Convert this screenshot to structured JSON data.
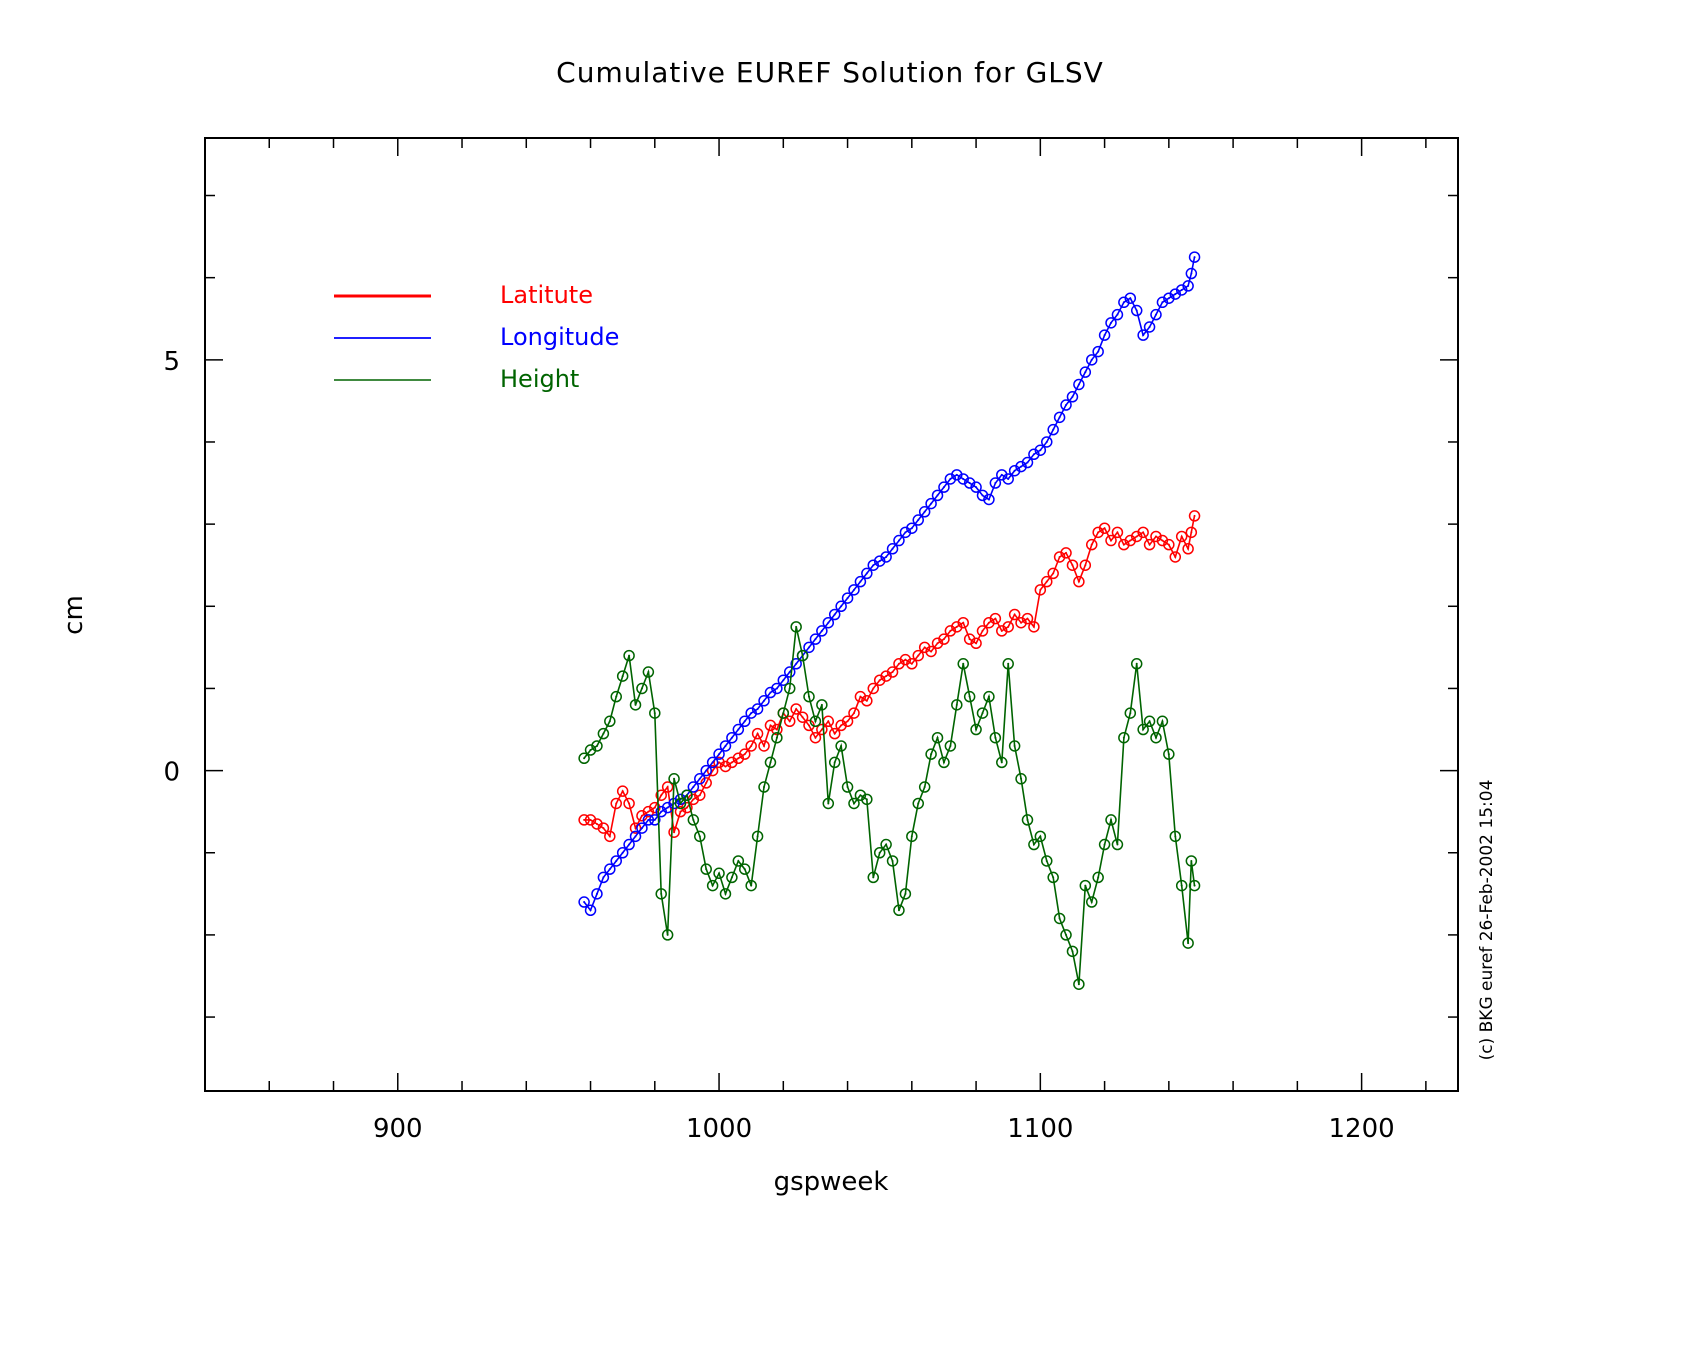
{
  "chart_data": {
    "type": "line",
    "title": "Cumulative EUREF Solution for GLSV",
    "xlabel": "gspweek",
    "ylabel": "cm",
    "xlim": [
      840,
      1230
    ],
    "ylim": [
      -3.9,
      7.7
    ],
    "xticks": [
      900,
      1000,
      1100,
      1200
    ],
    "yticks": [
      0,
      5
    ],
    "grid": false,
    "legend_position": "top-left",
    "copyright": "(c) BKG euref 26-Feb-2002 15:04",
    "series": [
      {
        "name": "Latitute",
        "color": "#ff0000",
        "x": [
          958,
          960,
          962,
          964,
          966,
          968,
          970,
          972,
          974,
          976,
          978,
          980,
          982,
          984,
          986,
          988,
          990,
          992,
          994,
          996,
          998,
          1000,
          1002,
          1004,
          1006,
          1008,
          1010,
          1012,
          1014,
          1016,
          1018,
          1020,
          1022,
          1024,
          1026,
          1028,
          1030,
          1032,
          1034,
          1036,
          1038,
          1040,
          1042,
          1044,
          1046,
          1048,
          1050,
          1052,
          1054,
          1056,
          1058,
          1060,
          1062,
          1064,
          1066,
          1068,
          1070,
          1072,
          1074,
          1076,
          1078,
          1080,
          1082,
          1084,
          1086,
          1088,
          1090,
          1092,
          1094,
          1096,
          1098,
          1100,
          1102,
          1104,
          1106,
          1108,
          1110,
          1112,
          1114,
          1116,
          1118,
          1120,
          1122,
          1124,
          1126,
          1128,
          1130,
          1132,
          1134,
          1136,
          1138,
          1140,
          1142,
          1144,
          1146,
          1147,
          1148
        ],
        "values": [
          -0.6,
          -0.6,
          -0.65,
          -0.7,
          -0.8,
          -0.4,
          -0.25,
          -0.4,
          -0.7,
          -0.55,
          -0.5,
          -0.45,
          -0.3,
          -0.2,
          -0.75,
          -0.5,
          -0.45,
          -0.35,
          -0.3,
          -0.15,
          0.0,
          0.1,
          0.05,
          0.1,
          0.15,
          0.2,
          0.3,
          0.45,
          0.3,
          0.55,
          0.5,
          0.7,
          0.6,
          0.75,
          0.65,
          0.55,
          0.4,
          0.5,
          0.6,
          0.45,
          0.55,
          0.6,
          0.7,
          0.9,
          0.85,
          1.0,
          1.1,
          1.15,
          1.2,
          1.3,
          1.35,
          1.3,
          1.4,
          1.5,
          1.45,
          1.55,
          1.6,
          1.7,
          1.75,
          1.8,
          1.6,
          1.55,
          1.7,
          1.8,
          1.85,
          1.7,
          1.75,
          1.9,
          1.8,
          1.85,
          1.75,
          2.2,
          2.3,
          2.4,
          2.6,
          2.65,
          2.5,
          2.3,
          2.5,
          2.75,
          2.9,
          2.95,
          2.8,
          2.9,
          2.75,
          2.8,
          2.85,
          2.9,
          2.75,
          2.85,
          2.8,
          2.75,
          2.6,
          2.85,
          2.7,
          2.9,
          3.1
        ]
      },
      {
        "name": "Longitude",
        "color": "#0000ff",
        "x": [
          958,
          960,
          962,
          964,
          966,
          968,
          970,
          972,
          974,
          976,
          978,
          980,
          982,
          984,
          986,
          988,
          990,
          992,
          994,
          996,
          998,
          1000,
          1002,
          1004,
          1006,
          1008,
          1010,
          1012,
          1014,
          1016,
          1018,
          1020,
          1022,
          1024,
          1026,
          1028,
          1030,
          1032,
          1034,
          1036,
          1038,
          1040,
          1042,
          1044,
          1046,
          1048,
          1050,
          1052,
          1054,
          1056,
          1058,
          1060,
          1062,
          1064,
          1066,
          1068,
          1070,
          1072,
          1074,
          1076,
          1078,
          1080,
          1082,
          1084,
          1086,
          1088,
          1090,
          1092,
          1094,
          1096,
          1098,
          1100,
          1102,
          1104,
          1106,
          1108,
          1110,
          1112,
          1114,
          1116,
          1118,
          1120,
          1122,
          1124,
          1126,
          1128,
          1130,
          1132,
          1134,
          1136,
          1138,
          1140,
          1142,
          1144,
          1146,
          1147,
          1148
        ],
        "values": [
          -1.6,
          -1.7,
          -1.5,
          -1.3,
          -1.2,
          -1.1,
          -1.0,
          -0.9,
          -0.8,
          -0.7,
          -0.6,
          -0.6,
          -0.5,
          -0.45,
          -0.4,
          -0.35,
          -0.3,
          -0.2,
          -0.1,
          0.0,
          0.1,
          0.2,
          0.3,
          0.4,
          0.5,
          0.6,
          0.7,
          0.75,
          0.85,
          0.95,
          1.0,
          1.1,
          1.2,
          1.3,
          1.4,
          1.5,
          1.6,
          1.7,
          1.8,
          1.9,
          2.0,
          2.1,
          2.2,
          2.3,
          2.4,
          2.5,
          2.55,
          2.6,
          2.7,
          2.8,
          2.9,
          2.95,
          3.05,
          3.15,
          3.25,
          3.35,
          3.45,
          3.55,
          3.6,
          3.55,
          3.5,
          3.45,
          3.35,
          3.3,
          3.5,
          3.6,
          3.55,
          3.65,
          3.7,
          3.75,
          3.85,
          3.9,
          4.0,
          4.15,
          4.3,
          4.45,
          4.55,
          4.7,
          4.85,
          5.0,
          5.1,
          5.3,
          5.45,
          5.55,
          5.7,
          5.75,
          5.6,
          5.3,
          5.4,
          5.55,
          5.7,
          5.75,
          5.8,
          5.85,
          5.9,
          6.05,
          6.25
        ]
      },
      {
        "name": "Height",
        "color": "#006400",
        "x": [
          958,
          960,
          962,
          964,
          966,
          968,
          970,
          972,
          974,
          976,
          978,
          980,
          982,
          984,
          986,
          988,
          990,
          992,
          994,
          996,
          998,
          1000,
          1002,
          1004,
          1006,
          1008,
          1010,
          1012,
          1014,
          1016,
          1018,
          1020,
          1022,
          1024,
          1026,
          1028,
          1030,
          1032,
          1034,
          1036,
          1038,
          1040,
          1042,
          1044,
          1046,
          1048,
          1050,
          1052,
          1054,
          1056,
          1058,
          1060,
          1062,
          1064,
          1066,
          1068,
          1070,
          1072,
          1074,
          1076,
          1078,
          1080,
          1082,
          1084,
          1086,
          1088,
          1090,
          1092,
          1094,
          1096,
          1098,
          1100,
          1102,
          1104,
          1106,
          1108,
          1110,
          1112,
          1114,
          1116,
          1118,
          1120,
          1122,
          1124,
          1126,
          1128,
          1130,
          1132,
          1134,
          1136,
          1138,
          1140,
          1142,
          1144,
          1146,
          1147,
          1148
        ],
        "values": [
          0.15,
          0.25,
          0.3,
          0.45,
          0.6,
          0.9,
          1.15,
          1.4,
          0.8,
          1.0,
          1.2,
          0.7,
          -1.5,
          -2.0,
          -0.1,
          -0.4,
          -0.3,
          -0.6,
          -0.8,
          -1.2,
          -1.4,
          -1.25,
          -1.5,
          -1.3,
          -1.1,
          -1.2,
          -1.4,
          -0.8,
          -0.2,
          0.1,
          0.4,
          0.7,
          1.0,
          1.75,
          1.4,
          0.9,
          0.6,
          0.8,
          -0.4,
          0.1,
          0.3,
          -0.2,
          -0.4,
          -0.3,
          -0.35,
          -1.3,
          -1.0,
          -0.9,
          -1.1,
          -1.7,
          -1.5,
          -0.8,
          -0.4,
          -0.2,
          0.2,
          0.4,
          0.1,
          0.3,
          0.8,
          1.3,
          0.9,
          0.5,
          0.7,
          0.9,
          0.4,
          0.1,
          1.3,
          0.3,
          -0.1,
          -0.6,
          -0.9,
          -0.8,
          -1.1,
          -1.3,
          -1.8,
          -2.0,
          -2.2,
          -2.6,
          -1.4,
          -1.6,
          -1.3,
          -0.9,
          -0.6,
          -0.9,
          0.4,
          0.7,
          1.3,
          0.5,
          0.6,
          0.4,
          0.6,
          0.2,
          -0.8,
          -1.4,
          -2.1,
          -1.1,
          -1.4
        ]
      }
    ]
  }
}
